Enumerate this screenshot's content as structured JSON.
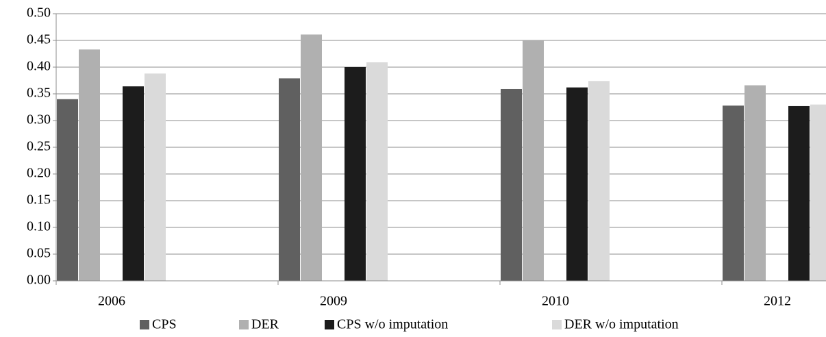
{
  "chart_data": {
    "type": "bar",
    "categories": [
      "2006",
      "2009",
      "2010",
      "2012"
    ],
    "series": [
      {
        "name": "CPS",
        "color": "#606060",
        "values": [
          0.34,
          0.379,
          0.359,
          0.328
        ]
      },
      {
        "name": "DER",
        "color": "#b0b0b0",
        "values": [
          0.433,
          0.461,
          0.451,
          0.366
        ]
      },
      {
        "name": "CPS w/o imputation",
        "color": "#1c1c1c",
        "values": [
          0.364,
          0.4,
          0.362,
          0.327
        ]
      },
      {
        "name": "DER w/o imputation",
        "color": "#dadada",
        "values": [
          0.388,
          0.409,
          0.374,
          0.33
        ]
      }
    ],
    "ylim": [
      0,
      0.5
    ],
    "yticks": [
      {
        "value": 0,
        "label": "0.00"
      },
      {
        "value": 0.05,
        "label": "0.05"
      },
      {
        "value": 0.1,
        "label": "0.10"
      },
      {
        "value": 0.15,
        "label": "0.15"
      },
      {
        "value": 0.2,
        "label": "0.20"
      },
      {
        "value": 0.25,
        "label": "0.25"
      },
      {
        "value": 0.3,
        "label": "0.30"
      },
      {
        "value": 0.35,
        "label": "0.35"
      },
      {
        "value": 0.4,
        "label": "0.40"
      },
      {
        "value": 0.45,
        "label": "0.45"
      },
      {
        "value": 0.5,
        "label": "0.50"
      }
    ],
    "grid": true
  }
}
